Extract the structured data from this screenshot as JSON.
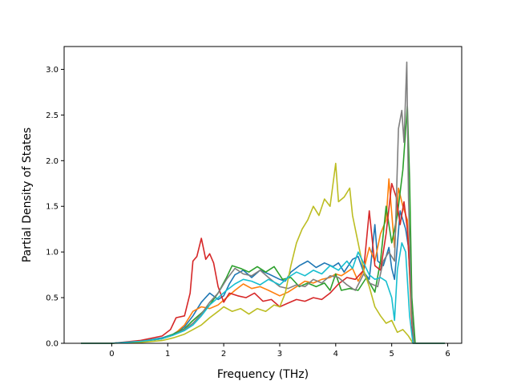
{
  "chart_data": {
    "type": "line",
    "title": "",
    "xlabel": "Frequency (THz)",
    "ylabel": "Partial Density of States",
    "xlim": [
      -0.85,
      6.25
    ],
    "ylim": [
      0,
      3.25
    ],
    "xticks": [
      0,
      1,
      2,
      3,
      4,
      5,
      6
    ],
    "yticks": [
      0.0,
      0.5,
      1.0,
      1.5,
      2.0,
      2.5,
      3.0
    ],
    "ytick_labels": [
      "0.0",
      "0.5",
      "1.0",
      "1.5",
      "2.0",
      "2.5",
      "3.0"
    ],
    "grid": false,
    "legend": "none",
    "series": [
      {
        "color": "#1f77b4",
        "points": [
          [
            -0.55,
            0
          ],
          [
            0,
            0
          ],
          [
            0.5,
            0.02
          ],
          [
            0.9,
            0.06
          ],
          [
            1.1,
            0.1
          ],
          [
            1.3,
            0.18
          ],
          [
            1.45,
            0.3
          ],
          [
            1.6,
            0.45
          ],
          [
            1.75,
            0.55
          ],
          [
            1.9,
            0.48
          ],
          [
            2.0,
            0.52
          ],
          [
            2.1,
            0.65
          ],
          [
            2.2,
            0.75
          ],
          [
            2.35,
            0.8
          ],
          [
            2.5,
            0.72
          ],
          [
            2.65,
            0.8
          ],
          [
            2.8,
            0.76
          ],
          [
            3.0,
            0.7
          ],
          [
            3.1,
            0.68
          ],
          [
            3.2,
            0.78
          ],
          [
            3.35,
            0.85
          ],
          [
            3.5,
            0.9
          ],
          [
            3.65,
            0.83
          ],
          [
            3.8,
            0.88
          ],
          [
            3.95,
            0.84
          ],
          [
            4.05,
            0.88
          ],
          [
            4.15,
            0.78
          ],
          [
            4.3,
            0.92
          ],
          [
            4.4,
            0.95
          ],
          [
            4.5,
            0.78
          ],
          [
            4.6,
            0.7
          ],
          [
            4.7,
            1.3
          ],
          [
            4.75,
            0.9
          ],
          [
            4.85,
            0.85
          ],
          [
            4.95,
            1.05
          ],
          [
            5.0,
            0.82
          ],
          [
            5.05,
            0.7
          ],
          [
            5.15,
            1.45
          ],
          [
            5.25,
            1.25
          ],
          [
            5.3,
            1.05
          ],
          [
            5.35,
            0.4
          ],
          [
            5.4,
            0
          ],
          [
            5.95,
            0
          ]
        ]
      },
      {
        "color": "#ff7f0e",
        "points": [
          [
            -0.55,
            0
          ],
          [
            0,
            0
          ],
          [
            0.5,
            0.02
          ],
          [
            0.9,
            0.05
          ],
          [
            1.1,
            0.09
          ],
          [
            1.3,
            0.2
          ],
          [
            1.45,
            0.35
          ],
          [
            1.6,
            0.4
          ],
          [
            1.75,
            0.38
          ],
          [
            1.9,
            0.42
          ],
          [
            2.05,
            0.5
          ],
          [
            2.2,
            0.58
          ],
          [
            2.35,
            0.65
          ],
          [
            2.5,
            0.6
          ],
          [
            2.65,
            0.62
          ],
          [
            2.8,
            0.58
          ],
          [
            3.0,
            0.52
          ],
          [
            3.15,
            0.56
          ],
          [
            3.3,
            0.62
          ],
          [
            3.45,
            0.68
          ],
          [
            3.6,
            0.66
          ],
          [
            3.75,
            0.7
          ],
          [
            3.9,
            0.72
          ],
          [
            4.0,
            0.76
          ],
          [
            4.1,
            0.74
          ],
          [
            4.2,
            0.78
          ],
          [
            4.3,
            0.82
          ],
          [
            4.4,
            0.68
          ],
          [
            4.5,
            0.8
          ],
          [
            4.6,
            1.05
          ],
          [
            4.7,
            0.9
          ],
          [
            4.8,
            1.2
          ],
          [
            4.9,
            1.35
          ],
          [
            4.95,
            1.8
          ],
          [
            5.05,
            1.05
          ],
          [
            5.12,
            1.7
          ],
          [
            5.2,
            1.5
          ],
          [
            5.28,
            1.35
          ],
          [
            5.35,
            0.3
          ],
          [
            5.4,
            0
          ],
          [
            5.95,
            0
          ]
        ]
      },
      {
        "color": "#2ca02c",
        "points": [
          [
            -0.55,
            0
          ],
          [
            0,
            0
          ],
          [
            0.5,
            0.02
          ],
          [
            0.9,
            0.05
          ],
          [
            1.1,
            0.1
          ],
          [
            1.3,
            0.16
          ],
          [
            1.45,
            0.25
          ],
          [
            1.6,
            0.33
          ],
          [
            1.75,
            0.42
          ],
          [
            1.9,
            0.55
          ],
          [
            2.05,
            0.72
          ],
          [
            2.15,
            0.85
          ],
          [
            2.3,
            0.82
          ],
          [
            2.45,
            0.78
          ],
          [
            2.6,
            0.84
          ],
          [
            2.75,
            0.78
          ],
          [
            2.9,
            0.84
          ],
          [
            3.05,
            0.7
          ],
          [
            3.2,
            0.72
          ],
          [
            3.35,
            0.62
          ],
          [
            3.5,
            0.66
          ],
          [
            3.65,
            0.62
          ],
          [
            3.8,
            0.66
          ],
          [
            3.9,
            0.58
          ],
          [
            4.0,
            0.76
          ],
          [
            4.1,
            0.58
          ],
          [
            4.25,
            0.6
          ],
          [
            4.4,
            0.58
          ],
          [
            4.55,
            0.72
          ],
          [
            4.7,
            0.56
          ],
          [
            4.8,
            0.9
          ],
          [
            4.9,
            1.5
          ],
          [
            5.0,
            1.1
          ],
          [
            5.1,
            1.4
          ],
          [
            5.2,
            1.9
          ],
          [
            5.28,
            2.6
          ],
          [
            5.32,
            1.8
          ],
          [
            5.36,
            0.5
          ],
          [
            5.42,
            0
          ],
          [
            5.95,
            0
          ]
        ]
      },
      {
        "color": "#d62728",
        "points": [
          [
            -0.55,
            0
          ],
          [
            0,
            0
          ],
          [
            0.5,
            0.03
          ],
          [
            0.9,
            0.08
          ],
          [
            1.05,
            0.15
          ],
          [
            1.15,
            0.28
          ],
          [
            1.3,
            0.3
          ],
          [
            1.4,
            0.55
          ],
          [
            1.45,
            0.9
          ],
          [
            1.52,
            0.95
          ],
          [
            1.6,
            1.15
          ],
          [
            1.68,
            0.92
          ],
          [
            1.75,
            0.98
          ],
          [
            1.82,
            0.88
          ],
          [
            1.9,
            0.62
          ],
          [
            2.0,
            0.45
          ],
          [
            2.1,
            0.55
          ],
          [
            2.25,
            0.52
          ],
          [
            2.4,
            0.5
          ],
          [
            2.55,
            0.55
          ],
          [
            2.7,
            0.46
          ],
          [
            2.85,
            0.48
          ],
          [
            3.0,
            0.4
          ],
          [
            3.15,
            0.44
          ],
          [
            3.3,
            0.48
          ],
          [
            3.45,
            0.46
          ],
          [
            3.6,
            0.5
          ],
          [
            3.75,
            0.48
          ],
          [
            3.9,
            0.55
          ],
          [
            4.05,
            0.65
          ],
          [
            4.2,
            0.72
          ],
          [
            4.35,
            0.7
          ],
          [
            4.5,
            0.8
          ],
          [
            4.6,
            1.45
          ],
          [
            4.7,
            0.85
          ],
          [
            4.8,
            0.8
          ],
          [
            4.9,
            1.2
          ],
          [
            5.0,
            1.75
          ],
          [
            5.08,
            1.6
          ],
          [
            5.15,
            1.3
          ],
          [
            5.22,
            1.55
          ],
          [
            5.28,
            1.25
          ],
          [
            5.32,
            0.8
          ],
          [
            5.38,
            0
          ],
          [
            5.95,
            0
          ]
        ]
      },
      {
        "color": "#7f7f7f",
        "points": [
          [
            -0.55,
            0
          ],
          [
            0,
            0
          ],
          [
            0.5,
            0.02
          ],
          [
            0.9,
            0.05
          ],
          [
            1.1,
            0.09
          ],
          [
            1.3,
            0.15
          ],
          [
            1.45,
            0.22
          ],
          [
            1.6,
            0.32
          ],
          [
            1.75,
            0.45
          ],
          [
            1.9,
            0.55
          ],
          [
            2.05,
            0.7
          ],
          [
            2.2,
            0.82
          ],
          [
            2.35,
            0.76
          ],
          [
            2.5,
            0.74
          ],
          [
            2.65,
            0.8
          ],
          [
            2.8,
            0.72
          ],
          [
            3.0,
            0.62
          ],
          [
            3.15,
            0.6
          ],
          [
            3.3,
            0.64
          ],
          [
            3.45,
            0.62
          ],
          [
            3.6,
            0.7
          ],
          [
            3.75,
            0.66
          ],
          [
            3.9,
            0.74
          ],
          [
            4.05,
            0.72
          ],
          [
            4.2,
            0.64
          ],
          [
            4.35,
            0.58
          ],
          [
            4.5,
            0.76
          ],
          [
            4.6,
            0.66
          ],
          [
            4.75,
            0.62
          ],
          [
            4.85,
            0.9
          ],
          [
            4.95,
            1.0
          ],
          [
            5.05,
            0.9
          ],
          [
            5.12,
            2.35
          ],
          [
            5.18,
            2.55
          ],
          [
            5.22,
            2.2
          ],
          [
            5.27,
            3.08
          ],
          [
            5.3,
            1.6
          ],
          [
            5.35,
            0.4
          ],
          [
            5.4,
            0
          ],
          [
            5.95,
            0
          ]
        ]
      },
      {
        "color": "#bcbd22",
        "points": [
          [
            -0.55,
            0
          ],
          [
            0,
            0
          ],
          [
            0.5,
            0.01
          ],
          [
            0.9,
            0.03
          ],
          [
            1.1,
            0.06
          ],
          [
            1.3,
            0.1
          ],
          [
            1.45,
            0.15
          ],
          [
            1.6,
            0.2
          ],
          [
            1.75,
            0.28
          ],
          [
            1.9,
            0.35
          ],
          [
            2.0,
            0.4
          ],
          [
            2.15,
            0.35
          ],
          [
            2.3,
            0.38
          ],
          [
            2.45,
            0.32
          ],
          [
            2.6,
            0.38
          ],
          [
            2.75,
            0.35
          ],
          [
            2.9,
            0.42
          ],
          [
            3.0,
            0.4
          ],
          [
            3.1,
            0.55
          ],
          [
            3.2,
            0.85
          ],
          [
            3.3,
            1.1
          ],
          [
            3.4,
            1.25
          ],
          [
            3.5,
            1.35
          ],
          [
            3.6,
            1.5
          ],
          [
            3.7,
            1.4
          ],
          [
            3.8,
            1.58
          ],
          [
            3.9,
            1.5
          ],
          [
            4.0,
            1.97
          ],
          [
            4.05,
            1.55
          ],
          [
            4.15,
            1.6
          ],
          [
            4.25,
            1.7
          ],
          [
            4.3,
            1.4
          ],
          [
            4.4,
            1.1
          ],
          [
            4.5,
            0.8
          ],
          [
            4.6,
            0.62
          ],
          [
            4.7,
            0.4
          ],
          [
            4.8,
            0.3
          ],
          [
            4.9,
            0.22
          ],
          [
            5.0,
            0.25
          ],
          [
            5.1,
            0.12
          ],
          [
            5.2,
            0.15
          ],
          [
            5.3,
            0.08
          ],
          [
            5.38,
            0
          ],
          [
            5.95,
            0
          ]
        ]
      },
      {
        "color": "#17becf",
        "points": [
          [
            -0.55,
            0
          ],
          [
            0,
            0
          ],
          [
            0.5,
            0.02
          ],
          [
            0.9,
            0.05
          ],
          [
            1.1,
            0.09
          ],
          [
            1.3,
            0.14
          ],
          [
            1.45,
            0.2
          ],
          [
            1.6,
            0.3
          ],
          [
            1.75,
            0.42
          ],
          [
            1.9,
            0.5
          ],
          [
            2.05,
            0.58
          ],
          [
            2.2,
            0.65
          ],
          [
            2.35,
            0.7
          ],
          [
            2.5,
            0.68
          ],
          [
            2.65,
            0.64
          ],
          [
            2.8,
            0.7
          ],
          [
            3.0,
            0.64
          ],
          [
            3.15,
            0.72
          ],
          [
            3.3,
            0.78
          ],
          [
            3.45,
            0.74
          ],
          [
            3.6,
            0.8
          ],
          [
            3.75,
            0.76
          ],
          [
            3.9,
            0.85
          ],
          [
            4.05,
            0.8
          ],
          [
            4.2,
            0.9
          ],
          [
            4.3,
            0.82
          ],
          [
            4.4,
            1.0
          ],
          [
            4.5,
            0.88
          ],
          [
            4.6,
            0.75
          ],
          [
            4.7,
            0.7
          ],
          [
            4.8,
            0.72
          ],
          [
            4.9,
            0.68
          ],
          [
            5.0,
            0.5
          ],
          [
            5.05,
            0.25
          ],
          [
            5.1,
            0.8
          ],
          [
            5.18,
            1.1
          ],
          [
            5.25,
            1.0
          ],
          [
            5.32,
            0.3
          ],
          [
            5.38,
            0
          ],
          [
            5.95,
            0
          ]
        ]
      }
    ]
  }
}
